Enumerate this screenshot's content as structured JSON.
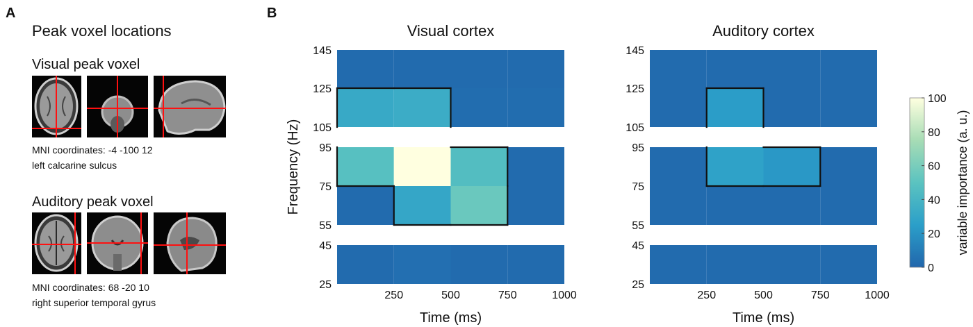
{
  "panel_a": {
    "letter": "A",
    "title": "Peak voxel locations",
    "visual": {
      "heading": "Visual peak voxel",
      "coords": "MNI coordinates: -4 -100 12",
      "region": "left calcarine sulcus"
    },
    "auditory": {
      "heading": "Auditory peak voxel",
      "coords": "MNI coordinates: 68 -20 10",
      "region": "right superior temporal gyrus"
    }
  },
  "panel_b": {
    "letter": "B"
  },
  "colors": {
    "crosshair": "#ff1010",
    "outline": "#111111",
    "gap": "#ffffff"
  },
  "colorbar": {
    "label": "variable importance (a. u.)",
    "min": 0,
    "max": 100,
    "ticks": [
      "0",
      "20",
      "40",
      "60",
      "80",
      "100"
    ],
    "stops": [
      "#2166ac",
      "#2b9fc9",
      "#5bc3c0",
      "#a7dcb5",
      "#ffffe0"
    ]
  },
  "chart_data": [
    {
      "type": "heatmap",
      "title": "Visual cortex",
      "xlabel": "Time (ms)",
      "ylabel": "Frequency (Hz)",
      "x_ticks": [
        "250",
        "500",
        "750",
        "1000"
      ],
      "y_ticks": [
        "25",
        "45",
        "55",
        "75",
        "95",
        "105",
        "125",
        "145"
      ],
      "xlim": [
        0,
        1000
      ],
      "time_bins": [
        [
          0,
          250
        ],
        [
          250,
          500
        ],
        [
          500,
          750
        ],
        [
          750,
          1000
        ]
      ],
      "freq_bands": [
        [
          25,
          45
        ],
        [
          55,
          75
        ],
        [
          75,
          95
        ],
        [
          105,
          125
        ],
        [
          125,
          145
        ]
      ],
      "gaps_hz": [
        [
          45,
          55
        ],
        [
          95,
          105
        ]
      ],
      "values": [
        [
          2,
          4,
          2,
          2
        ],
        [
          2,
          30,
          55,
          2
        ],
        [
          48,
          100,
          46,
          2
        ],
        [
          32,
          34,
          3,
          3
        ],
        [
          2,
          2,
          2,
          2
        ]
      ],
      "outline_cells": [
        [
          3,
          0
        ],
        [
          3,
          1
        ],
        [
          2,
          0
        ],
        [
          2,
          1
        ],
        [
          2,
          2
        ],
        [
          1,
          1
        ],
        [
          1,
          2
        ]
      ]
    },
    {
      "type": "heatmap",
      "title": "Auditory cortex",
      "xlabel": "Time (ms)",
      "ylabel": "",
      "x_ticks": [
        "250",
        "500",
        "750",
        "1000"
      ],
      "y_ticks": [
        "25",
        "45",
        "55",
        "75",
        "95",
        "105",
        "125",
        "145"
      ],
      "xlim": [
        0,
        1000
      ],
      "time_bins": [
        [
          0,
          250
        ],
        [
          250,
          500
        ],
        [
          500,
          750
        ],
        [
          750,
          1000
        ]
      ],
      "freq_bands": [
        [
          25,
          45
        ],
        [
          55,
          75
        ],
        [
          75,
          95
        ],
        [
          105,
          125
        ],
        [
          125,
          145
        ]
      ],
      "gaps_hz": [
        [
          45,
          55
        ],
        [
          95,
          105
        ]
      ],
      "values": [
        [
          2,
          2,
          2,
          2
        ],
        [
          2,
          2,
          2,
          2
        ],
        [
          2,
          27,
          22,
          2
        ],
        [
          2,
          24,
          2,
          2
        ],
        [
          2,
          2,
          2,
          2
        ]
      ],
      "outline_cells": [
        [
          3,
          1
        ],
        [
          2,
          1
        ],
        [
          2,
          2
        ]
      ]
    }
  ]
}
